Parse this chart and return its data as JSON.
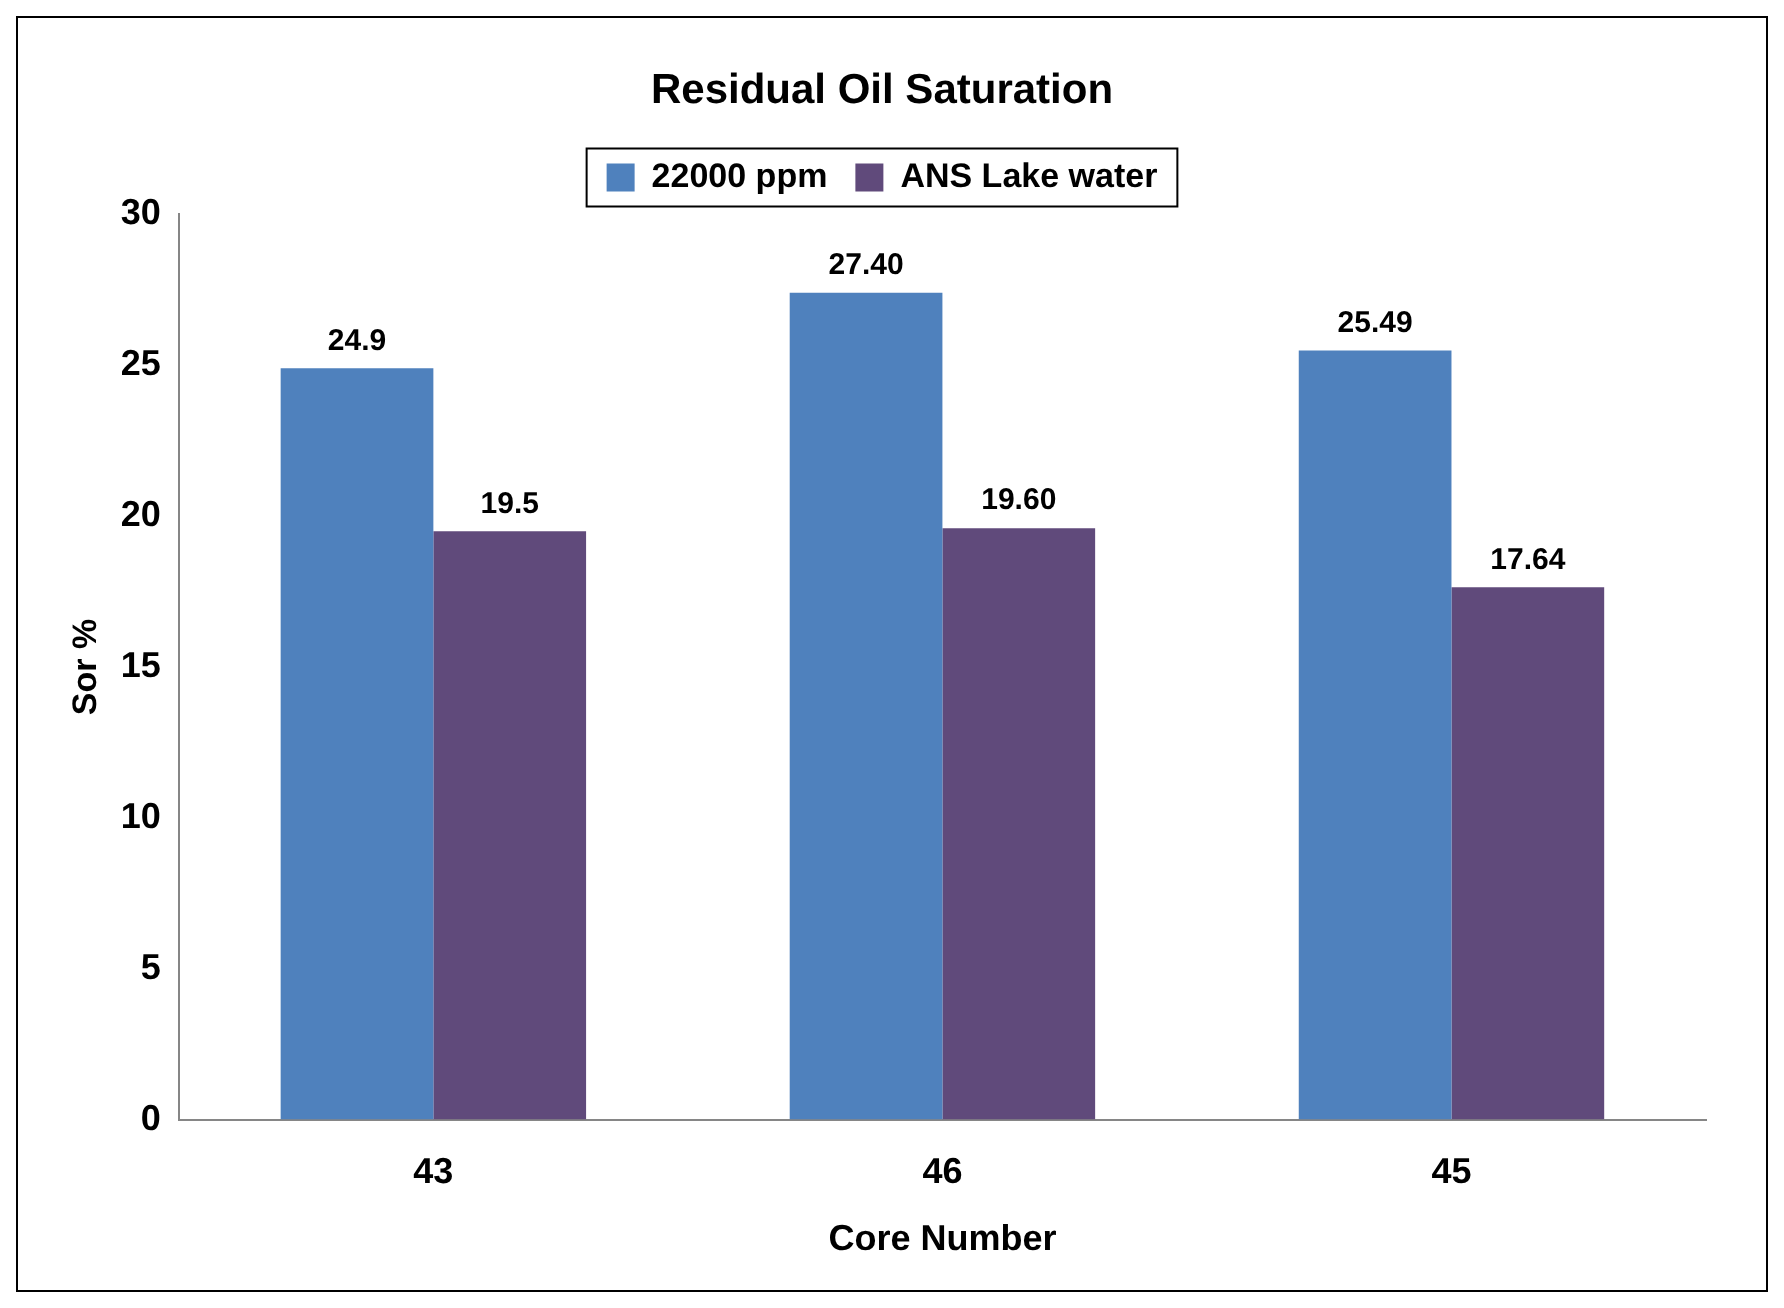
{
  "chart_data": {
    "type": "bar",
    "title": "Residual Oil Saturation",
    "xlabel": "Core Number",
    "ylabel": "Sor %",
    "categories": [
      "43",
      "46",
      "45"
    ],
    "series": [
      {
        "name": "22000 ppm",
        "color": "#4f81bd",
        "values": [
          24.9,
          27.4,
          25.49
        ],
        "value_labels": [
          "24.9",
          "27.40",
          "25.49"
        ]
      },
      {
        "name": "ANS Lake water",
        "color": "#604a7b",
        "values": [
          19.5,
          19.6,
          17.64
        ],
        "value_labels": [
          "19.5",
          "19.60",
          "17.64"
        ]
      }
    ],
    "ylim": [
      0,
      30
    ],
    "yticks": [
      0,
      5,
      10,
      15,
      20,
      25,
      30
    ],
    "grid": false,
    "legend": "top"
  }
}
